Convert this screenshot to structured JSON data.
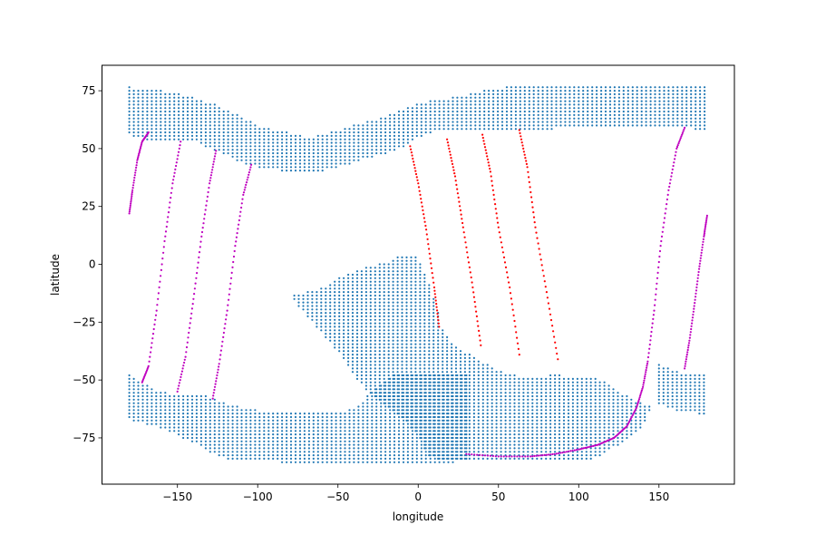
{
  "chart_data": {
    "type": "scatter",
    "title": "",
    "xlabel": "longitude",
    "ylabel": "latitude",
    "xlim": [
      -197,
      197
    ],
    "ylim": [
      -95,
      86
    ],
    "xticks": [
      -150,
      -100,
      -50,
      0,
      50,
      100,
      150
    ],
    "yticks": [
      -75,
      -50,
      -25,
      0,
      25,
      50,
      75
    ],
    "grid": false,
    "colors": {
      "grid_points": "#1f77b4",
      "red_tracks": "#ff0000",
      "magenta_tracks": "#bf00bf"
    },
    "series": [
      {
        "color": "#1f77b4",
        "marker": "dot",
        "regions": [
          {
            "lat_range": [
              39,
              77
            ],
            "outline_lon": [
              -180,
              -170,
              -160,
              -150,
              -140,
              -130,
              -120,
              -110,
              -100,
              -90,
              -80,
              -70,
              -60,
              -50,
              -40,
              -30,
              -20,
              -10,
              0,
              10,
              20,
              30,
              40,
              50,
              60,
              70,
              80,
              90,
              100,
              110,
              120,
              130,
              140,
              150,
              160,
              170,
              180
            ],
            "bottom": [
              56,
              54,
              54,
              54,
              54,
              50,
              47,
              44,
              42,
              41,
              40,
              39,
              40,
              42,
              44,
              46,
              48,
              50,
              55,
              57,
              58,
              58,
              58,
              58,
              58,
              58,
              58,
              59,
              59,
              59,
              59,
              59,
              59,
              59,
              59,
              59,
              57
            ],
            "top": [
              77,
              75,
              75,
              74,
              72,
              70,
              67,
              64,
              60,
              58,
              57,
              55,
              56,
              58,
              60,
              62,
              64,
              67,
              70,
              71,
              72,
              73,
              75,
              76,
              77,
              77,
              78,
              78,
              78,
              78,
              78,
              78,
              77,
              77,
              77,
              77,
              77
            ]
          },
          {
            "lat_range": [
              -88,
              4
            ],
            "outline_lon": [
              -80,
              -75,
              -70,
              -60,
              -50,
              -40,
              -30,
              -20,
              -10,
              0,
              5,
              10,
              15,
              20,
              30,
              40,
              50,
              60,
              70,
              80,
              90,
              100,
              110,
              115,
              120,
              130,
              140,
              145
            ],
            "bottom": [
              -13,
              -18,
              -22,
              -30,
              -38,
              -48,
              -56,
              -62,
              -67,
              -74,
              -82,
              -84,
              -84,
              -84,
              -84,
              -84,
              -84,
              -84,
              -84,
              -84,
              -84,
              -84,
              -84,
              -82,
              -80,
              -76,
              -70,
              -62
            ],
            "top": [
              -13,
              -13,
              -12,
              -10,
              -6,
              -3,
              -1,
              1,
              4,
              3,
              -5,
              -15,
              -27,
              -33,
              -38,
              -42,
              -46,
              -48,
              -49,
              -48,
              -48,
              -49,
              -49,
              -50,
              -53,
              -57,
              -60,
              -61
            ]
          },
          {
            "lat_range": [
              -89,
              -48
            ],
            "outline_lon": [
              -180,
              -170,
              -160,
              -150,
              -140,
              -130,
              -120,
              -110,
              -100,
              -90,
              -80,
              -70,
              -60,
              -50,
              -40,
              -30,
              -20,
              -10,
              0,
              10,
              20,
              30
            ],
            "bottom": [
              -67,
              -69,
              -71,
              -74,
              -77,
              -81,
              -84,
              -85,
              -85,
              -85,
              -86,
              -86,
              -86,
              -86,
              -86,
              -86,
              -86,
              -86,
              -86,
              -86,
              -86,
              -84
            ],
            "top": [
              -48,
              -52,
              -55,
              -56,
              -56,
              -57,
              -60,
              -62,
              -63,
              -64,
              -64,
              -64,
              -64,
              -64,
              -62,
              -56,
              -50,
              -45,
              -42,
              -40,
              -40,
              -40
            ]
          },
          {
            "lat_range": [
              -66,
              -43
            ],
            "outline_lon": [
              150,
              160,
              170,
              180
            ],
            "bottom": [
              -60,
              -63,
              -64,
              -66
            ],
            "top": [
              -43,
              -46,
              -48,
              -48
            ]
          }
        ]
      },
      {
        "color": "#ff0000",
        "marker": "dot",
        "tracks": [
          {
            "lon": [
              -5,
              0,
              5,
              10,
              13
            ],
            "lat": [
              51,
              35,
              15,
              -10,
              -27
            ]
          },
          {
            "lon": [
              18,
              23,
              28,
              34,
              39
            ],
            "lat": [
              54,
              38,
              16,
              -10,
              -35
            ]
          },
          {
            "lon": [
              40,
              45,
              50,
              57,
              63
            ],
            "lat": [
              56,
              40,
              16,
              -10,
              -39
            ]
          },
          {
            "lon": [
              63,
              68,
              73,
              80,
              87
            ],
            "lat": [
              58,
              42,
              16,
              -12,
              -41
            ]
          }
        ]
      },
      {
        "color": "#bf00bf",
        "marker": "dot",
        "tracks": [
          {
            "lon": [
              -180,
              -178,
              -175,
              -172,
              -168
            ],
            "lat": [
              22,
              32,
              45,
              53,
              57
            ]
          },
          {
            "lon": [
              -172,
              -168,
              -163,
              -158,
              -153,
              -148
            ],
            "lat": [
              -51,
              -44,
              -20,
              10,
              35,
              53
            ]
          },
          {
            "lon": [
              -150,
              -145,
              -140,
              -135,
              -130,
              -126
            ],
            "lat": [
              -55,
              -40,
              -15,
              12,
              35,
              49
            ]
          },
          {
            "lon": [
              -128,
              -124,
              -119,
              -114,
              -109,
              -104
            ],
            "lat": [
              -58,
              -43,
              -20,
              8,
              30,
              43
            ]
          },
          {
            "lon": [
              30,
              50,
              70,
              85,
              100,
              112,
              122,
              130,
              136,
              140,
              143,
              147,
              151,
              156,
              161,
              166
            ],
            "lat": [
              -82,
              -83,
              -83,
              -82,
              -80,
              -78,
              -75,
              -70,
              -62,
              -53,
              -42,
              -20,
              8,
              32,
              50,
              59
            ]
          },
          {
            "lon": [
              166,
              169,
              172,
              175,
              178,
              180
            ],
            "lat": [
              -45,
              -33,
              -18,
              -2,
              12,
              21
            ]
          }
        ]
      }
    ]
  }
}
